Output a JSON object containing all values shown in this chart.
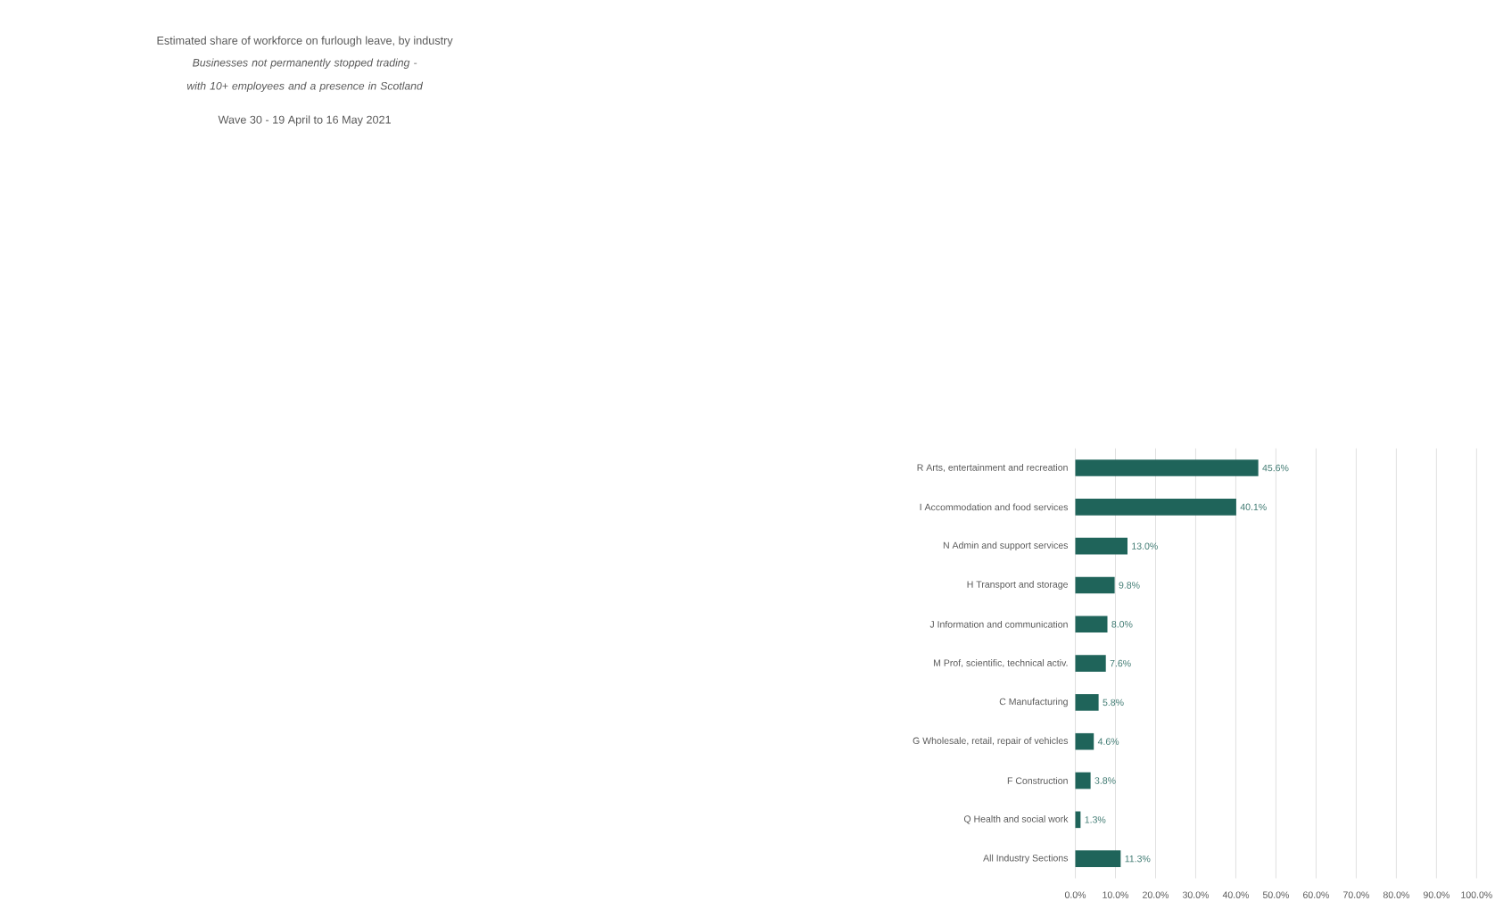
{
  "chart_data": {
    "type": "bar",
    "orientation": "horizontal",
    "title": "Estimated share of workforce on furlough leave, by industry",
    "subtitle": "Businesses not permanently stopped trading -  with 10+ employees and a presence in Scotland",
    "annotations": [
      "Wave 30 - 19 April to 16 May 2021"
    ],
    "categories": [
      "R Arts, entertainment and recreation",
      "I Accommodation and food services",
      "N Admin and support services",
      "H Transport and storage",
      "J Information and communication",
      "M Prof, scientific, technical activ.",
      "C Manufacturing",
      "G Wholesale, retail, repair of vehicles",
      "F Construction",
      "Q Health and social work",
      "All Industry Sections"
    ],
    "values": [
      45.6,
      40.1,
      13.0,
      9.8,
      8.0,
      7.6,
      5.8,
      4.6,
      3.8,
      1.3,
      11.3
    ],
    "value_labels": [
      "45.6%",
      "40.1%",
      "13.0%",
      "9.8%",
      "8.0%",
      "7.6%",
      "5.8%",
      "4.6%",
      "3.8%",
      "1.3%",
      "11.3%"
    ],
    "color": "#1f645a",
    "xlim": [
      0,
      100
    ],
    "xticks": [
      {
        "value": 0,
        "label": "0.0%"
      },
      {
        "value": 10,
        "label": "10.0%"
      },
      {
        "value": 20,
        "label": "20.0%"
      },
      {
        "value": 30,
        "label": "30.0%"
      },
      {
        "value": 40,
        "label": "40.0%"
      },
      {
        "value": 50,
        "label": "50.0%"
      },
      {
        "value": 60,
        "label": "60.0%"
      },
      {
        "value": 70,
        "label": "70.0%"
      },
      {
        "value": 80,
        "label": "80.0%"
      },
      {
        "value": 90,
        "label": "90.0%"
      },
      {
        "value": 100,
        "label": "100.0%"
      }
    ],
    "grid": "x"
  }
}
